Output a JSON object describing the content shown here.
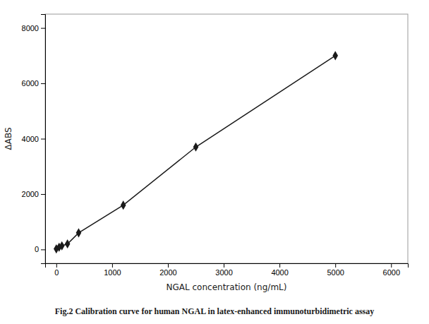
{
  "chart_data": {
    "type": "line",
    "title": "Fig.2 Calibration curve for human NGAL in latex-enhanced immunoturbidimetric assay",
    "x_label": "NGAL concentration (ng/mL)",
    "y_label": "ΔABS",
    "x": [
      0,
      50,
      100,
      200,
      400,
      1200,
      2500,
      5000
    ],
    "values": [
      20,
      80,
      130,
      200,
      600,
      1600,
      3700,
      7000
    ],
    "color": "#1a1a1a",
    "marker": "diamond",
    "xlim": [
      -200,
      6300
    ],
    "ylim": [
      -500,
      8500
    ],
    "xticks": [
      0,
      1000,
      2000,
      3000,
      4000,
      5000,
      6000
    ],
    "yticks": [
      0,
      2000,
      4000,
      6000,
      8000
    ],
    "grid": false
  }
}
